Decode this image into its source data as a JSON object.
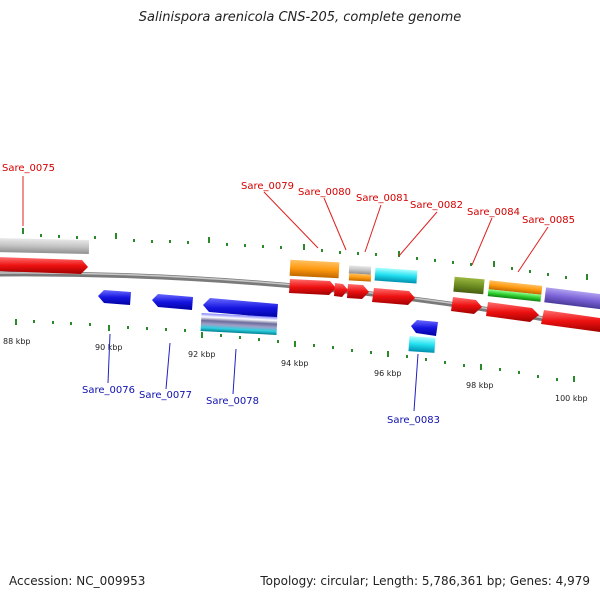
{
  "title": "Salinispora arenicola CNS-205, complete genome",
  "footer": {
    "accession": "Accession: NC_009953",
    "summary": "Topology: circular; Length: 5,786,361 bp; Genes: 4,979"
  },
  "colors": {
    "forward_label": "#d40000",
    "reverse_label": "#1010b0",
    "backbone": "#7a7a7a",
    "tick": "#2a8a2a",
    "cds_forward": "#ee1111",
    "cds_reverse": "#1515e0"
  },
  "tick_labels": [
    "88 kbp",
    "90 kbp",
    "92 kbp",
    "94 kbp",
    "96 kbp",
    "98 kbp",
    "100 kbp"
  ],
  "gene_labels": {
    "forward": [
      "Sare_0075",
      "Sare_0079",
      "Sare_0080",
      "Sare_0081",
      "Sare_0082",
      "Sare_0084",
      "Sare_0085"
    ],
    "reverse": [
      "Sare_0076",
      "Sare_0077",
      "Sare_0078",
      "Sare_0083"
    ]
  }
}
